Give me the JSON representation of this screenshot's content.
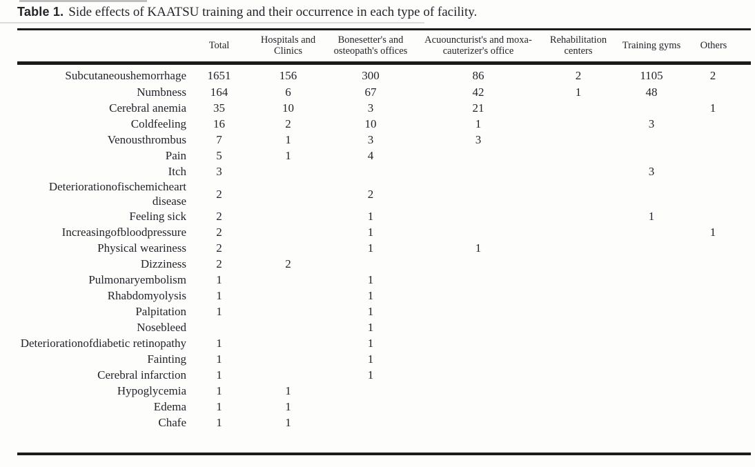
{
  "caption": {
    "label": "Table 1.",
    "text": "Side effects of KAATSU training and their occurrence in each type of facility."
  },
  "table": {
    "columns": [
      "Total",
      "Hospitals and Clinics",
      "Bonesetter's and osteopath's offices",
      "Acuouncturist's and moxa-cauterizer's office",
      "Rehabilitation centers",
      "Training gyms",
      "Others"
    ],
    "rows": [
      {
        "label": "Subcutaneoushemorrhage",
        "values": [
          "1651",
          "156",
          "300",
          "86",
          "2",
          "1105",
          "2"
        ]
      },
      {
        "label": "Numbness",
        "values": [
          "164",
          "6",
          "67",
          "42",
          "1",
          "48",
          ""
        ]
      },
      {
        "label": "Cerebral anemia",
        "values": [
          "35",
          "10",
          "3",
          "21",
          "",
          "",
          "1"
        ]
      },
      {
        "label": "Coldfeeling",
        "values": [
          "16",
          "2",
          "10",
          "1",
          "",
          "3",
          ""
        ]
      },
      {
        "label": "Venousthrombus",
        "values": [
          "7",
          "1",
          "3",
          "3",
          "",
          "",
          ""
        ]
      },
      {
        "label": "Pain",
        "values": [
          "5",
          "1",
          "4",
          "",
          "",
          "",
          ""
        ]
      },
      {
        "label": "Itch",
        "values": [
          "3",
          "",
          "",
          "",
          "",
          "3",
          ""
        ]
      },
      {
        "label": "Deteriorationofischemicheart disease",
        "values": [
          "2",
          "",
          "2",
          "",
          "",
          "",
          ""
        ]
      },
      {
        "label": "Feeling sick",
        "values": [
          "2",
          "",
          "1",
          "",
          "",
          "1",
          ""
        ]
      },
      {
        "label": "Increasingofbloodpressure",
        "values": [
          "2",
          "",
          "1",
          "",
          "",
          "",
          "1"
        ]
      },
      {
        "label": "Physical weariness",
        "values": [
          "2",
          "",
          "1",
          "1",
          "",
          "",
          ""
        ]
      },
      {
        "label": "Dizziness",
        "values": [
          "2",
          "2",
          "",
          "",
          "",
          "",
          ""
        ]
      },
      {
        "label": "Pulmonaryembolism",
        "values": [
          "1",
          "",
          "1",
          "",
          "",
          "",
          ""
        ]
      },
      {
        "label": "Rhabdomyolysis",
        "values": [
          "1",
          "",
          "1",
          "",
          "",
          "",
          ""
        ]
      },
      {
        "label": "Palpitation",
        "values": [
          "1",
          "",
          "1",
          "",
          "",
          "",
          ""
        ]
      },
      {
        "label": "Nosebleed",
        "values": [
          "",
          "",
          "1",
          "",
          "",
          "",
          ""
        ]
      },
      {
        "label": "Deteriorationofdiabetic retinopathy",
        "values": [
          "1",
          "",
          "1",
          "",
          "",
          "",
          ""
        ]
      },
      {
        "label": "Fainting",
        "values": [
          "1",
          "",
          "1",
          "",
          "",
          "",
          ""
        ]
      },
      {
        "label": "Cerebral infarction",
        "values": [
          "1",
          "",
          "1",
          "",
          "",
          "",
          ""
        ]
      },
      {
        "label": "Hypoglycemia",
        "values": [
          "1",
          "1",
          "",
          "",
          "",
          "",
          ""
        ]
      },
      {
        "label": "Edema",
        "values": [
          "1",
          "1",
          "",
          "",
          "",
          "",
          ""
        ]
      },
      {
        "label": "Chafe",
        "values": [
          "1",
          "1",
          "",
          "",
          "",
          "",
          ""
        ]
      }
    ]
  },
  "colors": {
    "rule": "#1b1b1b",
    "text": "#23232a",
    "background": "#fdfdfc"
  }
}
